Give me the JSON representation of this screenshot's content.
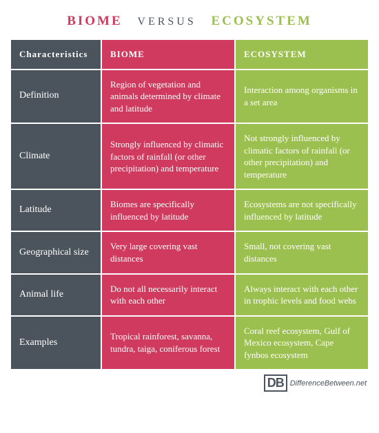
{
  "title": {
    "left": "BIOME",
    "mid": "VERSUS",
    "right": "ECOSYSTEM",
    "left_color": "#cf3a5e",
    "mid_color": "#4b545c",
    "right_color": "#9cc04f"
  },
  "colors": {
    "char_bg": "#4b545c",
    "col_a_bg": "#cf3a5e",
    "col_b_bg": "#9cc04f",
    "text": "#ffffff"
  },
  "table": {
    "header": {
      "char": "Characteristics",
      "a": "BIOME",
      "b": "ECOSYSTEM"
    },
    "rows": [
      {
        "char": "Definition",
        "a": "Region of vegetation and animals determined by climate and latitude",
        "b": "Interaction among organisms in a set area"
      },
      {
        "char": "Climate",
        "a": "Strongly influenced by climatic factors of rainfall (or other precipitation) and temperature",
        "b": "Not strongly influenced by climatic factors of rainfall (or other precipitation) and temperature"
      },
      {
        "char": "Latitude",
        "a": "Biomes are specifically influenced by latitude",
        "b": "Ecosystems are not specifically influenced by latitude"
      },
      {
        "char": "Geographical size",
        "a": "Very large covering vast distances",
        "b": "Small, not covering vast distances"
      },
      {
        "char": "Animal life",
        "a": "Do not all necessarily interact with each other",
        "b": "Always interact with each other in trophic levels and food webs"
      },
      {
        "char": "Examples",
        "a": "Tropical rainforest, savanna, tundra, taiga, coniferous forest",
        "b": "Coral reef ecosystem, Gulf of Mexico ecosystem, Cape fynbos ecosystem"
      }
    ]
  },
  "footer": {
    "logo_text": "DB",
    "site_prefix": "Difference",
    "site_suffix": "Between.net"
  }
}
